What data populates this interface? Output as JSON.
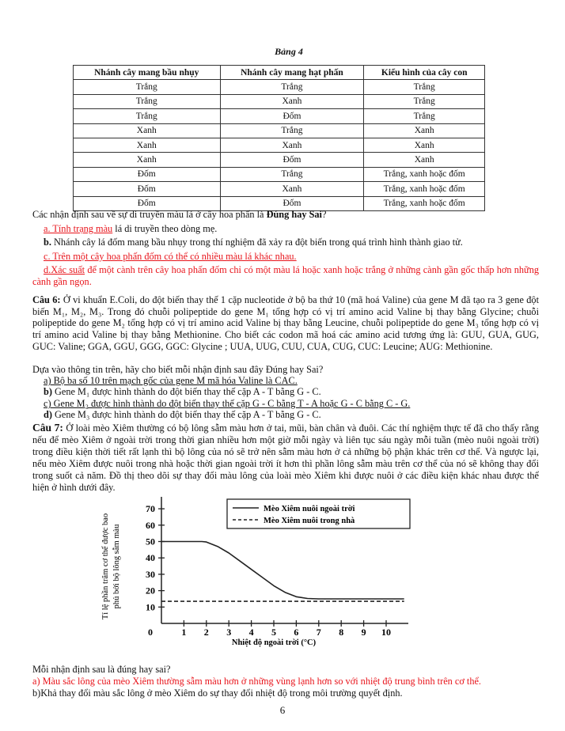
{
  "table4": {
    "caption": "Bảng 4",
    "headers": [
      "Nhánh cây mang bầu nhụy",
      "Nhánh cây mang hạt phấn",
      "Kiểu hình của cây con"
    ],
    "rows": [
      [
        "Trắng",
        "Trắng",
        "Trắng"
      ],
      [
        "Trắng",
        "Xanh",
        "Trắng"
      ],
      [
        "Trắng",
        "Đốm",
        "Trắng"
      ],
      [
        "Xanh",
        "Trắng",
        "Xanh"
      ],
      [
        "Xanh",
        "Xanh",
        "Xanh"
      ],
      [
        "Xanh",
        "Đốm",
        "Xanh"
      ],
      [
        "Đốm",
        "Trắng",
        "Trắng, xanh hoặc đốm"
      ],
      [
        "Đốm",
        "Xanh",
        "Trắng, xanh hoặc đốm"
      ],
      [
        "Đốm",
        "Đốm",
        "Trắng, xanh hoặc đốm"
      ]
    ]
  },
  "q5": {
    "prompt_start": "Các nhận định sau về sự di truyền màu lá ở cây hoa phấn là ",
    "prompt_bold": "Đúng hay Sai",
    "prompt_end": "?",
    "a_underlined": "a. Tính trạng màu",
    "a_rest": " lá di truyền theo dòng mẹ.",
    "b_label": "b.",
    "b_text": " Nhánh cây lá đốm mang bầu nhụy trong thí nghiệm đã xảy ra đột biến trong quá trình hình thành giao tử.",
    "c_text": "c. Trên một cây hoa phấn đốm có thể có nhiều màu lá khác nhau.",
    "d_underlined": "d.Xác suất",
    "d_rest": " để một cành trên cây hoa phấn đốm chỉ có một màu lá hoặc xanh hoặc trắng ở những cành gần gốc thấp hơn những cành gần ngọn."
  },
  "q6": {
    "label": "Câu 6:",
    "text": " Ở vi khuẩn E.Coli, do đột biến thay thế 1 cặp nucleotide ở bộ ba thứ 10 (mã hoá Valine) của gene M đã tạo ra 3 gene đột biến M₁, M₂, M₃. Trong đó chuỗi polipeptide do gene M₁ tổng hợp có vị trí amino acid Valine bị thay bằng Glycine; chuỗi polipeptide do gene M₂ tổng hợp có vị trí amino acid Valine bị thay bằng Leucine, chuỗi polipeptide do gene M₃ tổng hợp có vị trí amino acid Valine bị thay bằng Methionine. Cho biết các codon mã hoá các amino acid tương ứng là: GUU, GUA, GUG, GUC: Valine; GGA, GGU, GGG, GGC: Glycine ; UUA, UUG, CUU, CUA, CUG, CUC: Leucine; AUG: Methionine.",
    "prompt": "Dựa vào thông tin trên, hãy cho biết mỗi nhận định sau đây Đúng hay Sai?",
    "a": "a) Bộ ba số 10 trên mạch gốc của gene M mã hóa Valine là CAC.",
    "b_label": "b)",
    "b": " Gene M₁ được hình thành do đột biến thay thế cặp A - T bằng G - C.",
    "c": "c) Gene M₂ được hình thành do đột biến thay thế cặp G - C bằng T - A hoặc G - C bằng C - G.",
    "d_label": "d)",
    "d": " Gene M₃ được hình thành do đột biến thay thế cặp A - T bằng G - C."
  },
  "q7": {
    "label": "Câu 7:",
    "text": " Ở loài mèo Xiêm thường có bộ lông sẫm màu hơn ở tai, mũi, bàn chân và đuôi. Các thí nghiệm thực tế đã cho thấy rằng nếu để mèo Xiêm ở ngoài trời trong thời gian nhiều hơn một giờ mỗi ngày và liên tục sáu ngày mỗi tuần (mèo nuôi ngoài trời) trong điều kiện thời tiết rất lạnh thì bộ lông của nó sẽ trở nên sẫm màu hơn ở cả những bộ phận khác trên cơ thể. Và ngược lại, nếu mèo Xiêm được nuôi trong nhà hoặc thời gian ngoài trời ít hơn thì phần lông sẫm màu trên cơ thể của nó sẽ không thay đổi trong suốt cả năm. Đồ thị theo dõi sự thay đổi màu lông của loài mèo Xiêm khi được nuôi ở các điều kiện khác nhau được thể hiện ở hình dưới đây.",
    "prompt": "Mỗi nhận định sau là đúng hay sai?",
    "a": "a) Màu sắc lông của mèo Xiêm thường sẫm màu hơn ở những vùng lạnh hơn so với nhiệt độ trung bình trên cơ thể.",
    "b": "b)Khả thay đổi màu sắc lông ở mèo Xiêm do sự thay đổi nhiệt độ trong môi trường quyết định."
  },
  "chart_data": {
    "type": "line",
    "xlabel": "Nhiệt độ ngoài trời (°C)",
    "ylabel_lines": [
      "Tỉ lệ phần trăm cơ thể được bao",
      "phủ bởi bộ lông sẫm màu"
    ],
    "xlim": [
      0,
      10.8
    ],
    "ylim": [
      0,
      75
    ],
    "x_ticks": [
      "0",
      "1",
      "2",
      "3",
      "4",
      "5",
      "6",
      "7",
      "8",
      "9",
      "10"
    ],
    "y_ticks": [
      "10",
      "20",
      "30",
      "40",
      "50",
      "60",
      "70"
    ],
    "grid": false,
    "legend_position": "top-right",
    "series": [
      {
        "name": "Mèo Xiêm nuôi ngoài trời",
        "style": "solid",
        "x": [
          0,
          1,
          1.8,
          2,
          2.5,
          3,
          3.5,
          4,
          4.5,
          5,
          5.5,
          6,
          6.5,
          7,
          8,
          9,
          10,
          10.8
        ],
        "y": [
          50,
          50,
          50,
          49.7,
          47,
          43,
          38,
          33,
          28,
          23,
          19,
          16.3,
          15.2,
          15,
          15,
          15,
          15,
          15
        ]
      },
      {
        "name": "Mèo Xiêm nuôi trong nhà",
        "style": "dashed",
        "x": [
          0,
          10.8
        ],
        "y": [
          13.5,
          13.5
        ]
      }
    ]
  },
  "page_number": "6",
  "colors": {
    "answer_red": "#e8141b",
    "text": "#111111"
  }
}
